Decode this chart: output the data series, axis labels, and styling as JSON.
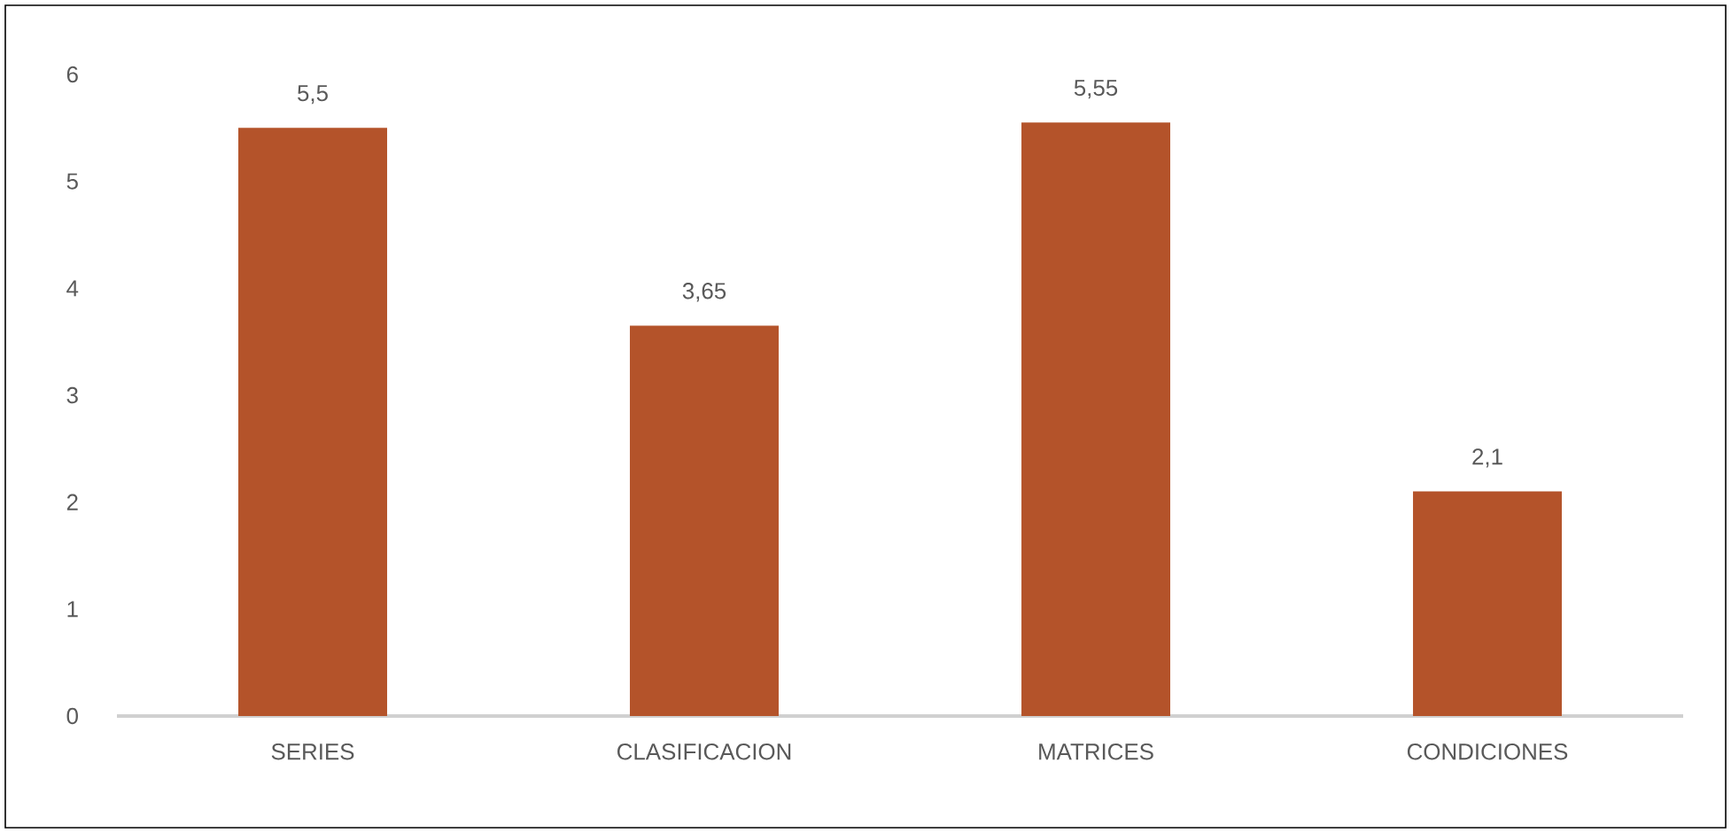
{
  "chart_data": {
    "type": "bar",
    "categories": [
      "SERIES",
      "CLASIFICACION",
      "MATRICES",
      "CONDICIONES"
    ],
    "values": [
      5.5,
      3.65,
      5.55,
      2.1
    ],
    "value_labels": [
      "5,5",
      "3,65",
      "5,55",
      "2,1"
    ],
    "color": "#b4532a",
    "ylim": [
      0,
      6
    ],
    "yticks": [
      0,
      1,
      2,
      3,
      4,
      5,
      6
    ]
  }
}
